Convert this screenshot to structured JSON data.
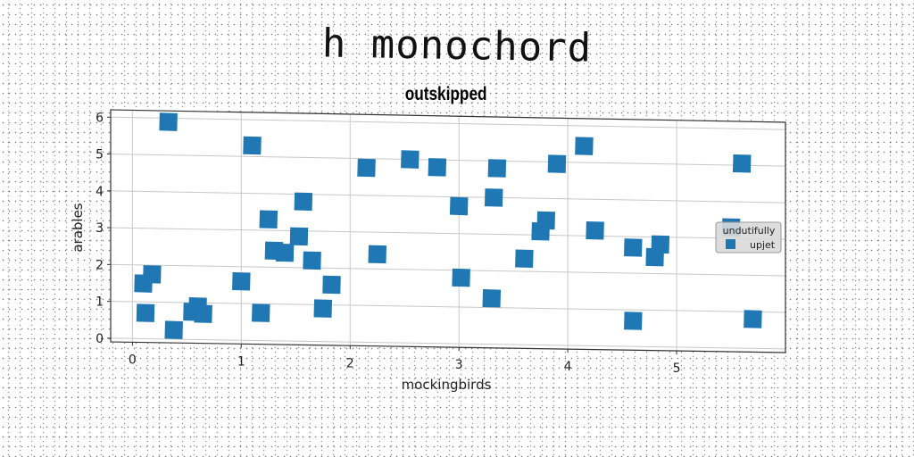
{
  "title": "h monochord",
  "chart_data": {
    "type": "scatter",
    "title": "outskipped",
    "xlabel": "mockingbirds",
    "ylabel": "arables",
    "xlim": [
      -0.2,
      6.0
    ],
    "ylim": [
      -0.1,
      6.2
    ],
    "xticks": [
      0,
      1,
      2,
      3,
      4,
      5
    ],
    "yticks": [
      0,
      1,
      2,
      3,
      4,
      5,
      6
    ],
    "grid": true,
    "legend": {
      "title": "undutifully",
      "position": "right",
      "entries": [
        "upjet"
      ]
    },
    "series": [
      {
        "name": "upjet",
        "color": "#1f77b4",
        "marker": "square",
        "points": [
          [
            0.33,
            5.9
          ],
          [
            1.1,
            5.3
          ],
          [
            2.15,
            4.75
          ],
          [
            2.55,
            5.0
          ],
          [
            2.8,
            4.8
          ],
          [
            3.35,
            4.8
          ],
          [
            3.9,
            4.95
          ],
          [
            4.15,
            5.45
          ],
          [
            5.6,
            5.05
          ],
          [
            1.57,
            3.8
          ],
          [
            3.0,
            3.75
          ],
          [
            3.32,
            4.0
          ],
          [
            1.25,
            3.3
          ],
          [
            3.75,
            3.1
          ],
          [
            3.8,
            3.4
          ],
          [
            4.25,
            3.15
          ],
          [
            5.5,
            3.3
          ],
          [
            1.53,
            2.85
          ],
          [
            1.3,
            2.45
          ],
          [
            1.4,
            2.4
          ],
          [
            1.65,
            2.2
          ],
          [
            2.25,
            2.4
          ],
          [
            3.6,
            2.35
          ],
          [
            4.6,
            2.7
          ],
          [
            4.8,
            2.45
          ],
          [
            4.85,
            2.8
          ],
          [
            0.18,
            1.75
          ],
          [
            0.1,
            1.5
          ],
          [
            1.0,
            1.6
          ],
          [
            1.83,
            1.55
          ],
          [
            3.02,
            1.8
          ],
          [
            3.3,
            1.25
          ],
          [
            0.12,
            0.7
          ],
          [
            0.55,
            0.75
          ],
          [
            0.6,
            0.9
          ],
          [
            0.65,
            0.7
          ],
          [
            1.18,
            0.75
          ],
          [
            1.75,
            0.9
          ],
          [
            4.6,
            0.7
          ],
          [
            5.7,
            0.8
          ],
          [
            0.38,
            0.25
          ]
        ]
      }
    ]
  }
}
